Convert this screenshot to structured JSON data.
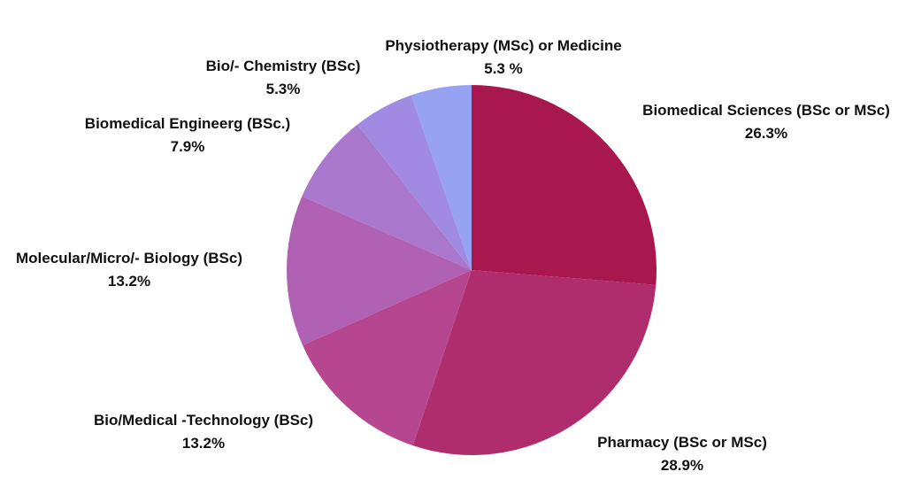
{
  "chart_data": {
    "type": "pie",
    "start": "12 o'clock",
    "direction": "clockwise",
    "slices": [
      {
        "label": "Biomedical Sciences (BSc or MSc)",
        "value_text": "26.3%",
        "value": 26.3,
        "color": "#A8174E"
      },
      {
        "label": "Pharmacy (BSc or MSc)",
        "value_text": "28.9%",
        "value": 28.9,
        "color": "#AF2D6D"
      },
      {
        "label": "Bio/Medical -Technology (BSc)",
        "value_text": "13.2%",
        "value": 13.2,
        "color": "#B5468F"
      },
      {
        "label": "Molecular/Micro/- Biology (BSc)",
        "value_text": "13.2%",
        "value": 13.2,
        "color": "#B061B3"
      },
      {
        "label": "Biomedical Engineerg (BSc.)",
        "value_text": "7.9%",
        "value": 7.9,
        "color": "#A977CB"
      },
      {
        "label": "Bio/- Chemistry (BSc)",
        "value_text": "5.3%",
        "value": 5.3,
        "color": "#A18BE2"
      },
      {
        "label": "Physiotherapy (MSc) or Medicine",
        "value_text": "5.3 %",
        "value": 5.3,
        "color": "#97A2F2"
      }
    ]
  }
}
